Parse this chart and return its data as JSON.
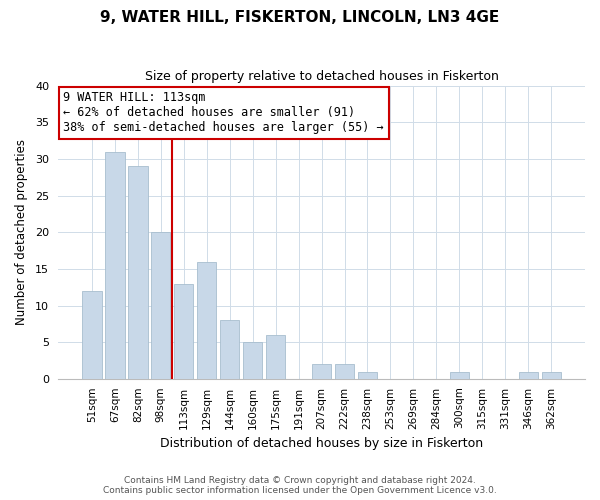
{
  "title": "9, WATER HILL, FISKERTON, LINCOLN, LN3 4GE",
  "subtitle": "Size of property relative to detached houses in Fiskerton",
  "xlabel": "Distribution of detached houses by size in Fiskerton",
  "ylabel": "Number of detached properties",
  "bar_color": "#c8d8e8",
  "bar_edge_color": "#a8bece",
  "background_color": "#ffffff",
  "grid_color": "#d0dce8",
  "categories": [
    "51sqm",
    "67sqm",
    "82sqm",
    "98sqm",
    "113sqm",
    "129sqm",
    "144sqm",
    "160sqm",
    "175sqm",
    "191sqm",
    "207sqm",
    "222sqm",
    "238sqm",
    "253sqm",
    "269sqm",
    "284sqm",
    "300sqm",
    "315sqm",
    "331sqm",
    "346sqm",
    "362sqm"
  ],
  "values": [
    12,
    31,
    29,
    20,
    13,
    16,
    8,
    5,
    6,
    0,
    2,
    2,
    1,
    0,
    0,
    0,
    1,
    0,
    0,
    1,
    1
  ],
  "ylim": [
    0,
    40
  ],
  "yticks": [
    0,
    5,
    10,
    15,
    20,
    25,
    30,
    35,
    40
  ],
  "marker_index": 4,
  "marker_color": "#cc0000",
  "annotation_title": "9 WATER HILL: 113sqm",
  "annotation_line1": "← 62% of detached houses are smaller (91)",
  "annotation_line2": "38% of semi-detached houses are larger (55) →",
  "annotation_box_color": "#ffffff",
  "annotation_box_edge": "#cc0000",
  "footer1": "Contains HM Land Registry data © Crown copyright and database right 2024.",
  "footer2": "Contains public sector information licensed under the Open Government Licence v3.0.",
  "figsize": [
    6.0,
    5.0
  ],
  "dpi": 100
}
